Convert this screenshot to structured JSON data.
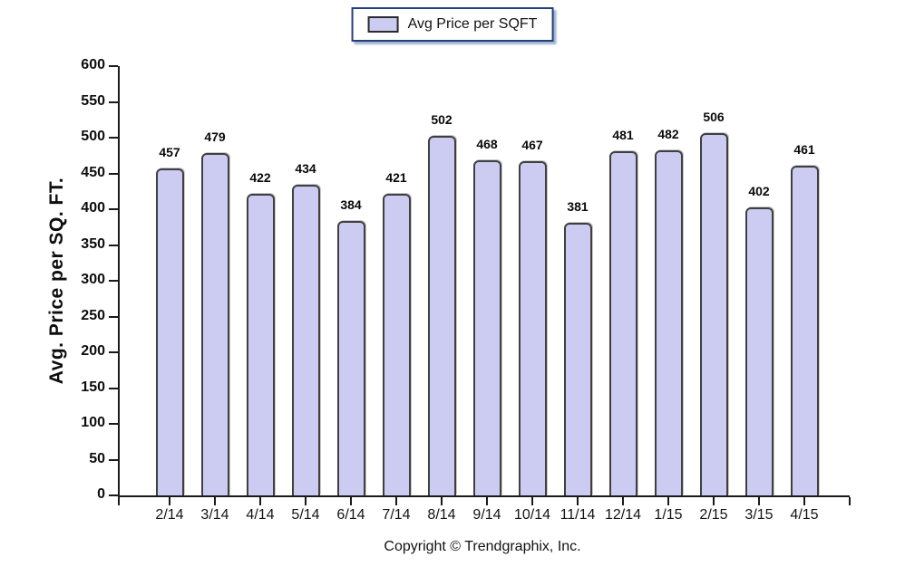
{
  "chart_data": {
    "type": "bar",
    "legend": "Avg Price per SQFT",
    "ylabel": "Avg. Price per SQ. FT.",
    "xlabel": "",
    "footer": "Copyright © Trendgraphix, Inc.",
    "categories": [
      "2/14",
      "3/14",
      "4/14",
      "5/14",
      "6/14",
      "7/14",
      "8/14",
      "9/14",
      "10/14",
      "11/14",
      "12/14",
      "1/15",
      "2/15",
      "3/15",
      "4/15"
    ],
    "values": [
      457,
      479,
      422,
      434,
      384,
      421,
      502,
      468,
      467,
      381,
      481,
      482,
      506,
      402,
      461
    ],
    "ylim": [
      0,
      600
    ],
    "ytick_step": 50,
    "grid": false,
    "legend_position": "top-center",
    "colors": {
      "bar_fill": "#ccccf2",
      "bar_border": "#3f3f3f",
      "axis": "#1a1a1a",
      "text": "#121212",
      "legend_border": "#24407a"
    }
  }
}
